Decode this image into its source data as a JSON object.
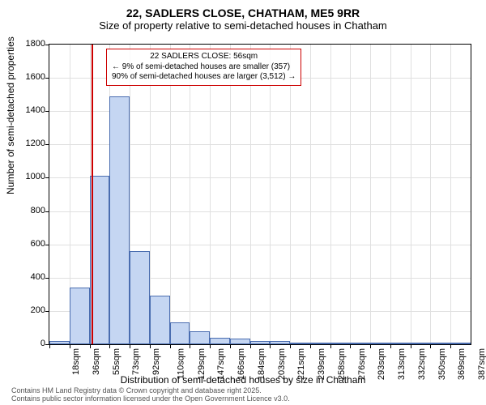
{
  "title": {
    "line1": "22, SADLERS CLOSE, CHATHAM, ME5 9RR",
    "line2": "Size of property relative to semi-detached houses in Chatham"
  },
  "chart": {
    "type": "histogram",
    "plot_bg": "#ffffff",
    "grid_color": "#e0e0e0",
    "bar_fill": "#c5d6f2",
    "bar_border": "#4a6db0",
    "marker_color": "#cc0000",
    "anno_border": "#cc0000",
    "yaxis": {
      "label": "Number of semi-detached properties",
      "min": 0,
      "max": 1800,
      "ticks": [
        0,
        200,
        400,
        600,
        800,
        1000,
        1200,
        1400,
        1600,
        1800
      ]
    },
    "xaxis": {
      "label": "Distribution of semi-detached houses by size in Chatham",
      "ticks": [
        "18sqm",
        "36sqm",
        "55sqm",
        "73sqm",
        "92sqm",
        "110sqm",
        "129sqm",
        "147sqm",
        "166sqm",
        "184sqm",
        "203sqm",
        "221sqm",
        "239sqm",
        "258sqm",
        "276sqm",
        "293sqm",
        "313sqm",
        "332sqm",
        "350sqm",
        "369sqm",
        "387sqm"
      ]
    },
    "bars": [
      {
        "i": 0,
        "value": 18
      },
      {
        "i": 1,
        "value": 340
      },
      {
        "i": 2,
        "value": 1010
      },
      {
        "i": 3,
        "value": 1490
      },
      {
        "i": 4,
        "value": 560
      },
      {
        "i": 5,
        "value": 290
      },
      {
        "i": 6,
        "value": 130
      },
      {
        "i": 7,
        "value": 80
      },
      {
        "i": 8,
        "value": 40
      },
      {
        "i": 9,
        "value": 35
      },
      {
        "i": 10,
        "value": 18
      },
      {
        "i": 11,
        "value": 18
      },
      {
        "i": 12,
        "value": 6
      },
      {
        "i": 13,
        "value": 4
      },
      {
        "i": 14,
        "value": 3
      },
      {
        "i": 15,
        "value": 2
      },
      {
        "i": 16,
        "value": 2
      },
      {
        "i": 17,
        "value": 1
      },
      {
        "i": 18,
        "value": 1
      },
      {
        "i": 19,
        "value": 1
      },
      {
        "i": 20,
        "value": 1
      }
    ],
    "marker_x_sqm": 56,
    "annotation": {
      "line1": "22 SADLERS CLOSE: 56sqm",
      "line2": "← 9% of semi-detached houses are smaller (357)",
      "line3": "90% of semi-detached houses are larger (3,512) →"
    }
  },
  "footer": {
    "line1": "Contains HM Land Registry data © Crown copyright and database right 2025.",
    "line2": "Contains public sector information licensed under the Open Government Licence v3.0."
  }
}
